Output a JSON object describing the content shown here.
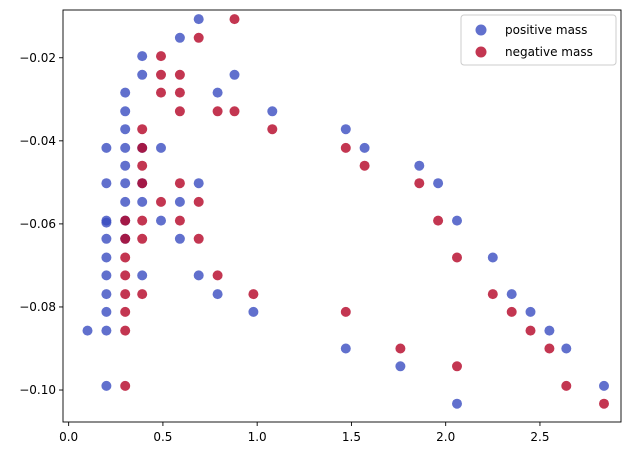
{
  "chart_data": {
    "type": "scatter",
    "xlim": [
      -0.03,
      2.93
    ],
    "ylim": [
      -0.1077,
      -0.0085
    ],
    "x_ticks": [
      0.0,
      0.5,
      1.0,
      1.5,
      2.0,
      2.5
    ],
    "x_tick_labels": [
      "0.0",
      "0.5",
      "1.0",
      "1.5",
      "2.0",
      "2.5"
    ],
    "y_ticks": [
      -0.02,
      -0.04,
      -0.06,
      -0.08,
      -0.1
    ],
    "y_tick_labels": [
      "−0.02",
      "−0.04",
      "−0.06",
      "−0.08",
      "−0.10"
    ],
    "grid": false,
    "legend_position": "top-right",
    "series": [
      {
        "name": "positive mass",
        "color": "#3a4cc0",
        "points": [
          [
            0.1,
            -0.0857
          ],
          [
            0.2,
            -0.0417
          ],
          [
            0.2,
            -0.0502
          ],
          [
            0.2,
            -0.0592
          ],
          [
            0.2,
            -0.0597
          ],
          [
            0.2,
            -0.0636
          ],
          [
            0.2,
            -0.0681
          ],
          [
            0.2,
            -0.0724
          ],
          [
            0.2,
            -0.0769
          ],
          [
            0.2,
            -0.0812
          ],
          [
            0.2,
            -0.0857
          ],
          [
            0.2,
            -0.099
          ],
          [
            0.3,
            -0.0284
          ],
          [
            0.3,
            -0.0329
          ],
          [
            0.3,
            -0.0372
          ],
          [
            0.3,
            -0.0417
          ],
          [
            0.3,
            -0.046
          ],
          [
            0.3,
            -0.0502
          ],
          [
            0.3,
            -0.0547
          ],
          [
            0.3,
            -0.0592
          ],
          [
            0.3,
            -0.0636
          ],
          [
            0.39,
            -0.0196
          ],
          [
            0.39,
            -0.0241
          ],
          [
            0.39,
            -0.0417
          ],
          [
            0.39,
            -0.0502
          ],
          [
            0.39,
            -0.0547
          ],
          [
            0.39,
            -0.0724
          ],
          [
            0.49,
            -0.0417
          ],
          [
            0.49,
            -0.0592
          ],
          [
            0.59,
            -0.0152
          ],
          [
            0.59,
            -0.0547
          ],
          [
            0.59,
            -0.0636
          ],
          [
            0.69,
            -0.0107
          ],
          [
            0.69,
            -0.0502
          ],
          [
            0.69,
            -0.0724
          ],
          [
            0.79,
            -0.0284
          ],
          [
            0.79,
            -0.0769
          ],
          [
            0.88,
            -0.0241
          ],
          [
            0.98,
            -0.0812
          ],
          [
            1.08,
            -0.0329
          ],
          [
            1.47,
            -0.0372
          ],
          [
            1.47,
            -0.09
          ],
          [
            1.57,
            -0.0417
          ],
          [
            1.76,
            -0.0943
          ],
          [
            1.86,
            -0.046
          ],
          [
            1.96,
            -0.0502
          ],
          [
            2.06,
            -0.0592
          ],
          [
            2.06,
            -0.1033
          ],
          [
            2.25,
            -0.0681
          ],
          [
            2.35,
            -0.0769
          ],
          [
            2.45,
            -0.0812
          ],
          [
            2.55,
            -0.0857
          ],
          [
            2.64,
            -0.09
          ],
          [
            2.84,
            -0.099
          ]
        ]
      },
      {
        "name": "negative mass",
        "color": "#b40426",
        "points": [
          [
            0.3,
            -0.0592
          ],
          [
            0.3,
            -0.0636
          ],
          [
            0.3,
            -0.0681
          ],
          [
            0.3,
            -0.0724
          ],
          [
            0.3,
            -0.0769
          ],
          [
            0.3,
            -0.0812
          ],
          [
            0.3,
            -0.0857
          ],
          [
            0.3,
            -0.099
          ],
          [
            0.39,
            -0.0372
          ],
          [
            0.39,
            -0.0417
          ],
          [
            0.39,
            -0.046
          ],
          [
            0.39,
            -0.0502
          ],
          [
            0.39,
            -0.0592
          ],
          [
            0.39,
            -0.0636
          ],
          [
            0.39,
            -0.0769
          ],
          [
            0.49,
            -0.0196
          ],
          [
            0.49,
            -0.0241
          ],
          [
            0.49,
            -0.0284
          ],
          [
            0.49,
            -0.0547
          ],
          [
            0.59,
            -0.0241
          ],
          [
            0.59,
            -0.0284
          ],
          [
            0.59,
            -0.0329
          ],
          [
            0.59,
            -0.0502
          ],
          [
            0.59,
            -0.0592
          ],
          [
            0.69,
            -0.0152
          ],
          [
            0.69,
            -0.0547
          ],
          [
            0.69,
            -0.0636
          ],
          [
            0.79,
            -0.0329
          ],
          [
            0.79,
            -0.0724
          ],
          [
            0.88,
            -0.0107
          ],
          [
            0.88,
            -0.0329
          ],
          [
            0.98,
            -0.0769
          ],
          [
            1.08,
            -0.0372
          ],
          [
            1.47,
            -0.0417
          ],
          [
            1.47,
            -0.0812
          ],
          [
            1.57,
            -0.046
          ],
          [
            1.76,
            -0.09
          ],
          [
            1.86,
            -0.0502
          ],
          [
            1.96,
            -0.0592
          ],
          [
            2.06,
            -0.0681
          ],
          [
            2.06,
            -0.0943
          ],
          [
            2.25,
            -0.0769
          ],
          [
            2.35,
            -0.0812
          ],
          [
            2.45,
            -0.0857
          ],
          [
            2.55,
            -0.09
          ],
          [
            2.64,
            -0.099
          ],
          [
            2.84,
            -0.1033
          ]
        ]
      }
    ]
  }
}
